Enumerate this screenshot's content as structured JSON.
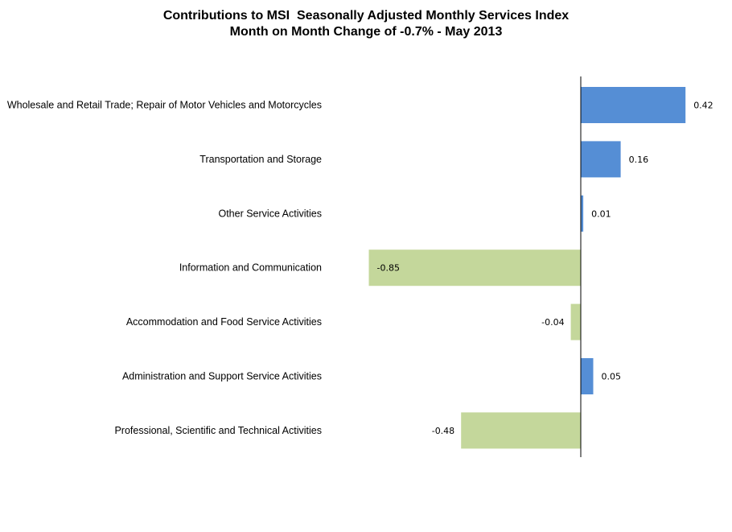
{
  "chart_data": {
    "type": "bar",
    "orientation": "horizontal",
    "title": "Contributions to MSI  Seasonally Adjusted Monthly Services Index",
    "subtitle": "Month on Month Change of -0.7% - May 2013",
    "categories": [
      "Wholesale and Retail Trade; Repair of Motor Vehicles and Motorcycles",
      "Transportation and Storage",
      "Other Service Activities",
      "Information and Communication",
      "Accommodation and Food Service Activities",
      "Administration and Support Service Activities",
      "Professional, Scientific and Technical Activities"
    ],
    "values": [
      0.42,
      0.16,
      0.01,
      -0.85,
      -0.04,
      0.05,
      -0.48
    ],
    "data_labels": [
      "0.42",
      "0.16",
      "0.01",
      "-0.85",
      "-0.04",
      "0.05",
      "-0.48"
    ],
    "xlim": [
      -0.85,
      0.55
    ],
    "grid": false,
    "legend": "none",
    "colors": {
      "positive": "#558ED5",
      "negative": "#C4D79B",
      "axis": "#000000"
    }
  }
}
